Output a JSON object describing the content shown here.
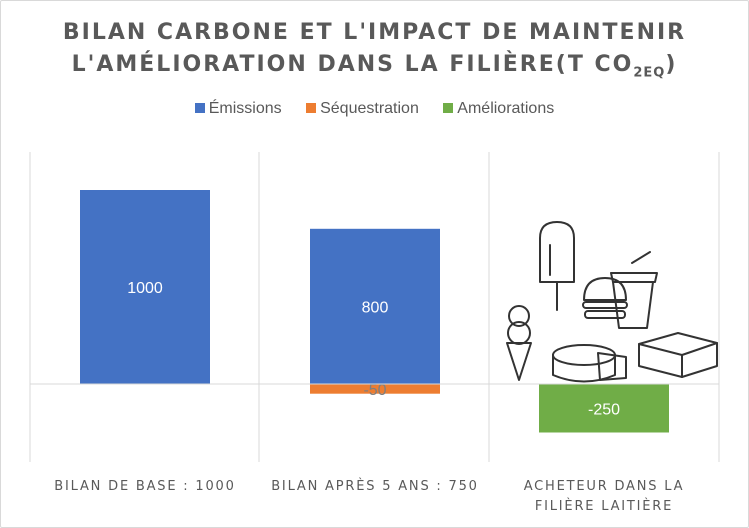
{
  "chart_data": {
    "type": "bar",
    "stacked": true,
    "title_line1": "BILAN CARBONE ET L'IMPACT DE MAINTENIR",
    "title_line2": "L'AMÉLIORATION DANS LA FILIÈRE(T CO",
    "title_sub": "2EQ",
    "title_end": ")",
    "categories": [
      "BILAN DE BASE : 1000",
      "BILAN APRÈS 5 ANS : 750",
      "ACHETEUR DANS LA FILIÈRE LAITIÈRE"
    ],
    "category_lines": [
      [
        "BILAN DE BASE : 1000"
      ],
      [
        "BILAN APRÈS 5 ANS : 750"
      ],
      [
        "ACHETEUR DANS LA",
        "FILIÈRE LAITIÈRE"
      ]
    ],
    "series": [
      {
        "name": "Émissions",
        "color": "#4472c4",
        "values": [
          1000,
          800,
          null
        ],
        "labels": [
          "1000",
          "800",
          ""
        ]
      },
      {
        "name": "Séquestration",
        "color": "#ed7d31",
        "values": [
          null,
          -50,
          null
        ],
        "labels": [
          "",
          "-50",
          ""
        ]
      },
      {
        "name": "Améliorations",
        "color": "#70ad47",
        "values": [
          null,
          null,
          -250
        ],
        "labels": [
          "",
          "",
          "-250"
        ]
      }
    ],
    "ylim": [
      -400,
      1100
    ],
    "grid": false,
    "legend_position": "top",
    "illustration": "dairy-products-icon"
  }
}
